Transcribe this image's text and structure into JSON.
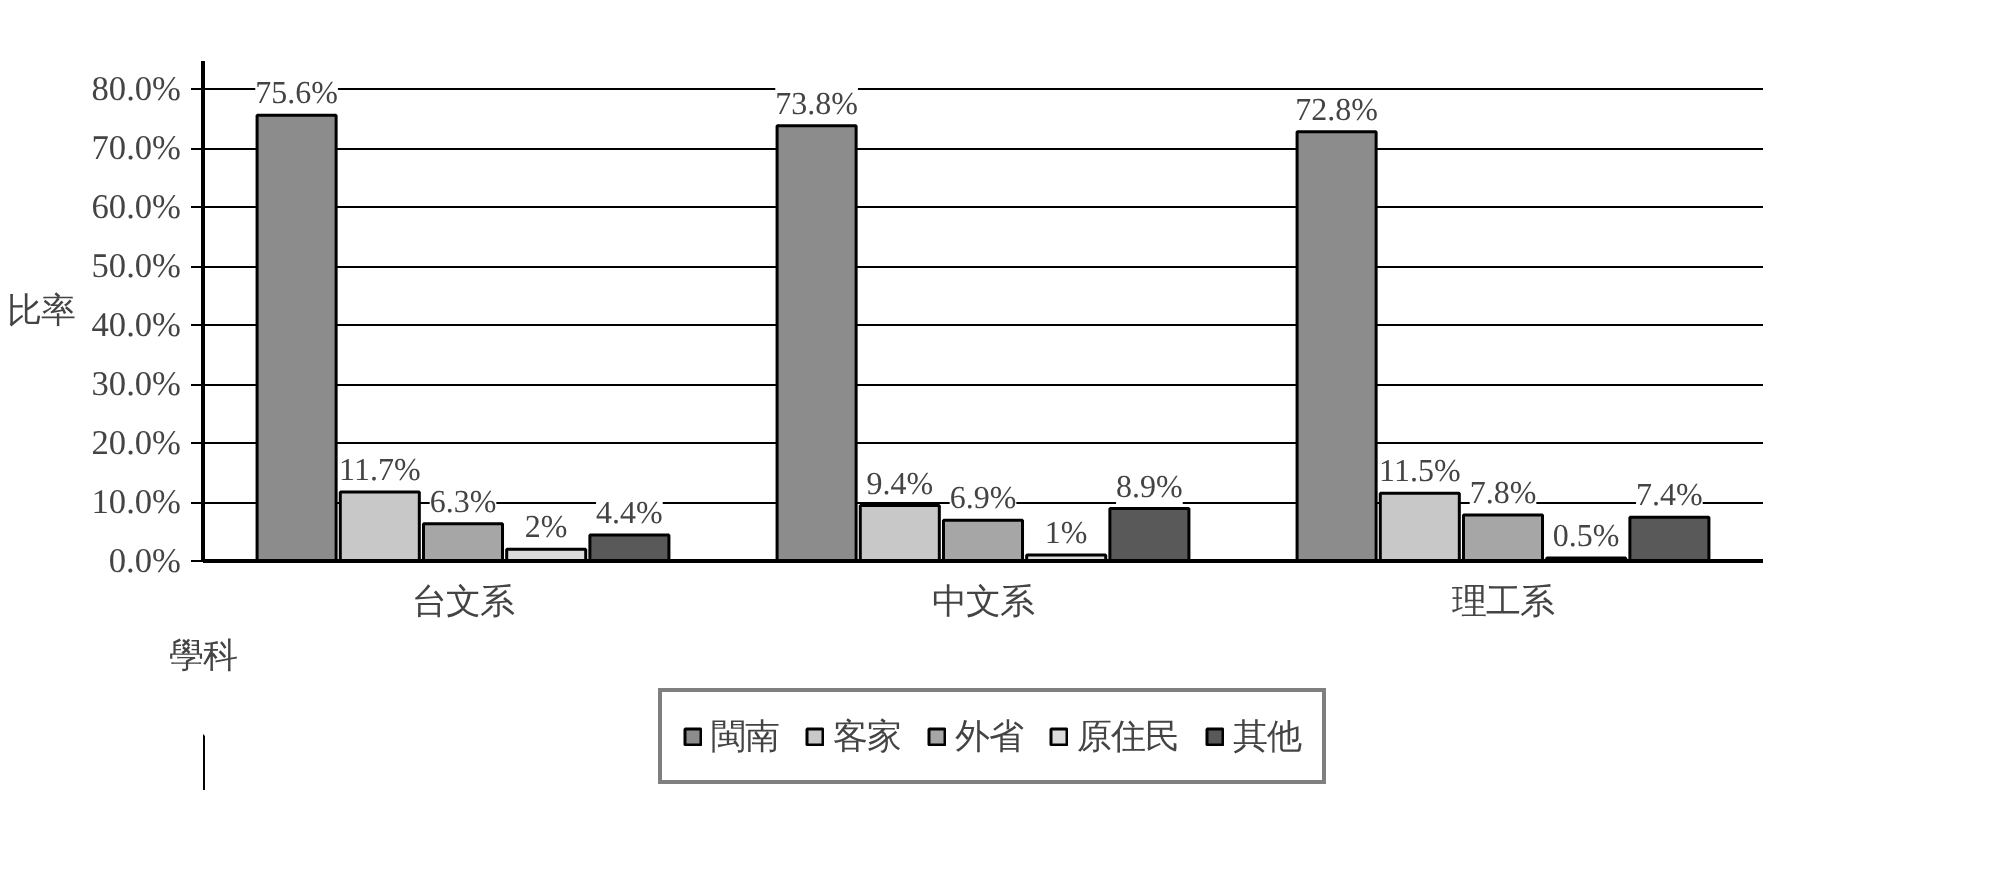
{
  "chart_data": {
    "type": "bar",
    "ylabel": "比率",
    "xlabel": "學科",
    "categories": [
      "台文系",
      "中文系",
      "理工系"
    ],
    "series": [
      {
        "name": "閩南",
        "color": "#8c8c8c",
        "values": [
          75.6,
          73.8,
          72.8
        ],
        "value_labels": [
          "75.6%",
          "73.8%",
          "72.8%"
        ]
      },
      {
        "name": "客家",
        "color": "#c8c8c8",
        "values": [
          11.7,
          9.4,
          11.5
        ],
        "value_labels": [
          "11.7%",
          "9.4%",
          "11.5%"
        ]
      },
      {
        "name": "外省",
        "color": "#a6a6a6",
        "values": [
          6.3,
          6.9,
          7.8
        ],
        "value_labels": [
          "6.3%",
          "6.9%",
          "7.8%"
        ]
      },
      {
        "name": "原住民",
        "color": "#dcdcdc",
        "values": [
          2,
          1,
          0.5
        ],
        "value_labels": [
          "2%",
          "1%",
          "0.5%"
        ]
      },
      {
        "name": "其他",
        "color": "#595959",
        "values": [
          4.4,
          8.9,
          7.4
        ],
        "value_labels": [
          "4.4%",
          "8.9%",
          "7.4%"
        ]
      }
    ],
    "ylim": [
      0,
      80
    ],
    "yticks": [
      {
        "value": 0,
        "label": "0.0%"
      },
      {
        "value": 10,
        "label": "10.0%"
      },
      {
        "value": 20,
        "label": "20.0%"
      },
      {
        "value": 30,
        "label": "30.0%"
      },
      {
        "value": 40,
        "label": "40.0%"
      },
      {
        "value": 50,
        "label": "50.0%"
      },
      {
        "value": 60,
        "label": "60.0%"
      },
      {
        "value": 70,
        "label": "70.0%"
      },
      {
        "value": 80,
        "label": "80.0%"
      }
    ],
    "grid": "y",
    "legend": "bottom"
  }
}
